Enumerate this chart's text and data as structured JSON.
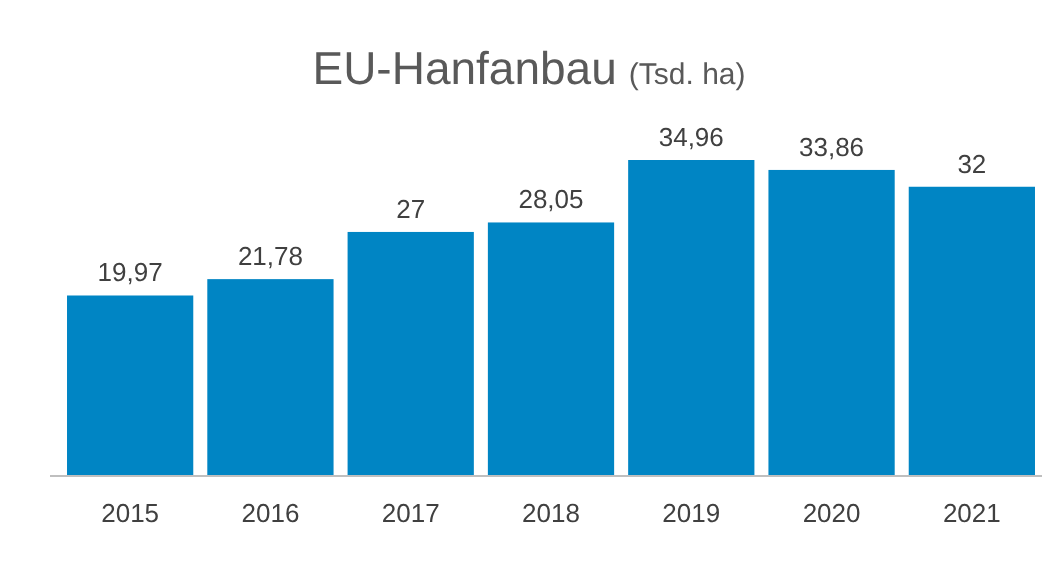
{
  "chart_data": {
    "type": "bar",
    "title": "EU-Hanfanbau",
    "subtitle": "(Tsd. ha)",
    "categories": [
      "2015",
      "2016",
      "2017",
      "2018",
      "2019",
      "2020",
      "2021"
    ],
    "values": [
      19.97,
      21.78,
      27,
      28.05,
      34.96,
      33.86,
      32
    ],
    "value_labels": [
      "19,97",
      "21,78",
      "27",
      "28,05",
      "34,96",
      "33,86",
      "32"
    ],
    "color": "#0085c4"
  }
}
